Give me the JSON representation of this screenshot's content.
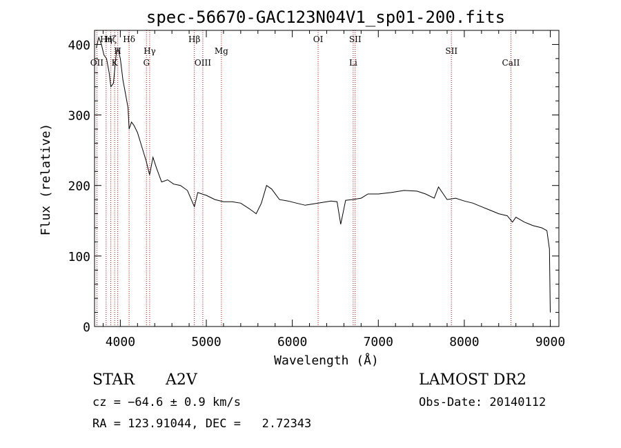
{
  "chart_data": {
    "type": "line",
    "title": "spec-56670-GAC123N04V1_sp01-200.fits",
    "xlabel": "Wavelength (Å)",
    "ylabel": "Flux (relative)",
    "xlim": [
      3700,
      9100
    ],
    "ylim": [
      0,
      420
    ],
    "x_ticks": [
      4000,
      5000,
      6000,
      7000,
      8000,
      9000
    ],
    "x_tick_labels": [
      "4000",
      "5000",
      "6000",
      "7000",
      "8000",
      "9000"
    ],
    "y_ticks": [
      0,
      100,
      200,
      300,
      400
    ],
    "y_tick_labels": [
      "0",
      "100",
      "200",
      "300",
      "400"
    ],
    "grid": false,
    "series": [
      {
        "x": [
          3720,
          3750,
          3780,
          3810,
          3840,
          3870,
          3890,
          3920,
          3950,
          3970,
          4000,
          4030,
          4060,
          4090,
          4102,
          4130,
          4160,
          4200,
          4250,
          4300,
          4340,
          4380,
          4420,
          4480,
          4550,
          4620,
          4700,
          4780,
          4861,
          4900,
          4950,
          5000,
          5100,
          5200,
          5300,
          5400,
          5500,
          5580,
          5640,
          5700,
          5760,
          5850,
          5950,
          6050,
          6150,
          6250,
          6350,
          6450,
          6520,
          6563,
          6620,
          6700,
          6800,
          6880,
          7000,
          7150,
          7300,
          7450,
          7550,
          7650,
          7700,
          7800,
          7900,
          8000,
          8100,
          8200,
          8300,
          8400,
          8500,
          8560,
          8600,
          8700,
          8800,
          8900,
          8960,
          8990,
          9000
        ],
        "y": [
          395,
          410,
          400,
          385,
          380,
          360,
          340,
          345,
          385,
          395,
          380,
          350,
          330,
          310,
          280,
          290,
          285,
          275,
          255,
          235,
          215,
          240,
          225,
          205,
          208,
          202,
          200,
          193,
          170,
          190,
          188,
          186,
          180,
          177,
          177,
          175,
          167,
          160,
          175,
          200,
          195,
          180,
          178,
          175,
          172,
          174,
          176,
          178,
          177,
          145,
          179,
          180,
          182,
          188,
          188,
          190,
          193,
          192,
          188,
          182,
          198,
          180,
          182,
          178,
          175,
          170,
          165,
          160,
          157,
          148,
          155,
          148,
          143,
          140,
          136,
          110,
          20
        ]
      }
    ],
    "line_markers": [
      {
        "wavelength": 3727,
        "label": "OII",
        "row": 3
      },
      {
        "wavelength": 3835,
        "label": "Hη",
        "row": 1
      },
      {
        "wavelength": 3889,
        "label": "Hζ",
        "row": 1
      },
      {
        "wavelength": 3934,
        "label": "K",
        "row": 3
      },
      {
        "wavelength": 3970,
        "label": "H",
        "row": 2
      },
      {
        "wavelength": 4102,
        "label": "Hδ",
        "row": 1
      },
      {
        "wavelength": 4304,
        "label": "G",
        "row": 3
      },
      {
        "wavelength": 4341,
        "label": "Hγ",
        "row": 2
      },
      {
        "wavelength": 4861,
        "label": "Hβ",
        "row": 1
      },
      {
        "wavelength": 4959,
        "label": "OIII",
        "row": 3
      },
      {
        "wavelength": 5175,
        "label": "Mg",
        "row": 2
      },
      {
        "wavelength": 6300,
        "label": "OI",
        "row": 1
      },
      {
        "wavelength": 6708,
        "label": "Li",
        "row": 3
      },
      {
        "wavelength": 6731,
        "label": "SII",
        "row": 1
      },
      {
        "wavelength": 7850,
        "label": "SII",
        "row": 2
      },
      {
        "wavelength": 8542,
        "label": "CaII",
        "row": 3
      }
    ],
    "spectrum_color": "#000000",
    "marker_color": "#cc0000"
  },
  "info": {
    "class": "STAR",
    "subclass": "A2V",
    "survey": "LAMOST DR2",
    "cz": "cz = −64.6 ± 0.9 km/s",
    "obs_date": "Obs-Date: 20140112",
    "radec": "RA = 123.91044, DEC =   2.72343"
  }
}
